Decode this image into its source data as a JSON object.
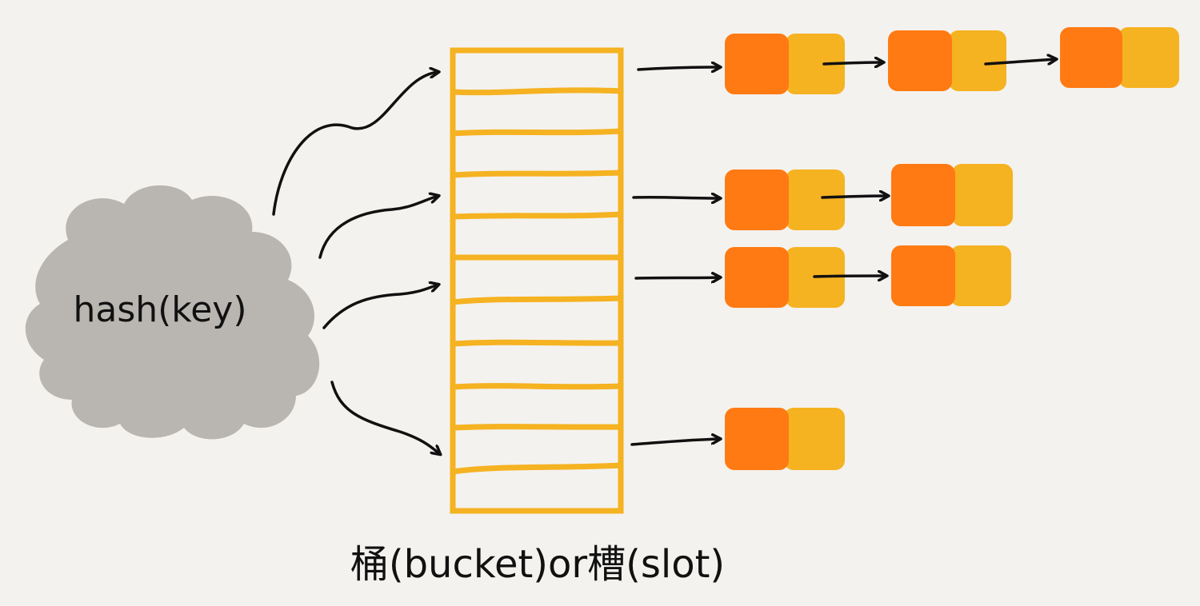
{
  "cloud": {
    "label": "hash(key)",
    "color": "#b9b6b1"
  },
  "bucket_caption": "桶(bucket)or槽(slot)",
  "colors": {
    "background": "#f4f2ee",
    "bucket_line": "#f5b221",
    "node_key": "#ff7a12",
    "node_value": "#f5b221",
    "ink": "#111111"
  },
  "bucket_array": {
    "slot_count": 11
  },
  "chains": [
    {
      "slot": 0,
      "nodes": 3
    },
    {
      "slot": 3,
      "nodes": 2
    },
    {
      "slot": 5,
      "nodes": 2
    },
    {
      "slot": 9,
      "nodes": 1
    }
  ]
}
